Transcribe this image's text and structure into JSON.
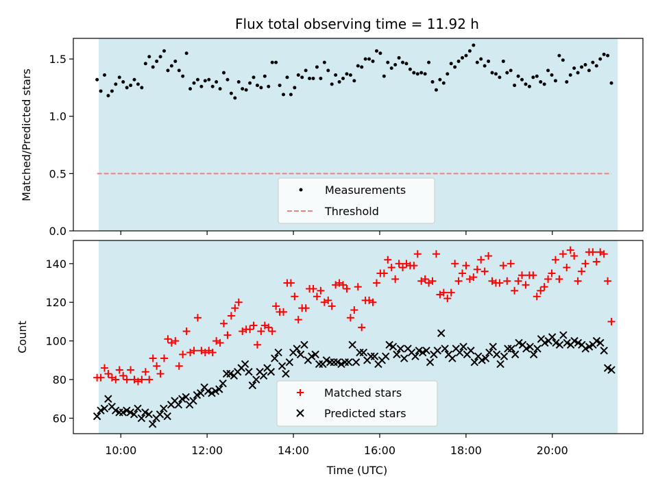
{
  "title": "Flux total observing time = 11.92 h",
  "colors": {
    "band": "#d4eaf1",
    "measurement": "#000000",
    "threshold": "#f08080",
    "matched": "#ff0000",
    "predicted": "#000000"
  },
  "chart_data": [
    {
      "type": "scatter",
      "ylabel": "Matched/Predicted stars",
      "ylim": [
        0,
        1.68
      ],
      "yticks": [
        0.0,
        0.5,
        1.0,
        1.5
      ],
      "ytick_labels": [
        "0.0",
        "0.5",
        "1.0",
        "1.5"
      ],
      "xlim": [
        8.9,
        22.1
      ],
      "observing_window": [
        9.45,
        21.37
      ],
      "legend": {
        "placement": "lower-center",
        "entries": [
          "Measurements",
          "Threshold"
        ]
      },
      "threshold": 0.5,
      "x_start": 9.45,
      "x_end": 21.37,
      "series": [
        {
          "name": "Measurements",
          "marker": "dot",
          "values": [
            1.32,
            1.22,
            1.36,
            1.18,
            1.22,
            1.28,
            1.34,
            1.3,
            1.25,
            1.27,
            1.32,
            1.28,
            1.25,
            1.46,
            1.52,
            1.43,
            1.48,
            1.52,
            1.57,
            1.4,
            1.44,
            1.48,
            1.4,
            1.35,
            1.55,
            1.24,
            1.29,
            1.32,
            1.26,
            1.31,
            1.32,
            1.26,
            1.3,
            1.24,
            1.38,
            1.32,
            1.2,
            1.16,
            1.3,
            1.24,
            1.23,
            1.29,
            1.34,
            1.27,
            1.25,
            1.35,
            1.26,
            1.47,
            1.47,
            1.27,
            1.19,
            1.34,
            1.19,
            1.25,
            1.36,
            1.34,
            1.4,
            1.33,
            1.33,
            1.43,
            1.33,
            1.47,
            1.4,
            1.28,
            1.36,
            1.3,
            1.33,
            1.37,
            1.36,
            1.31,
            1.44,
            1.43,
            1.5,
            1.5,
            1.48,
            1.57,
            1.55,
            1.35,
            1.47,
            1.42,
            1.45,
            1.51,
            1.47,
            1.46,
            1.41,
            1.38,
            1.37,
            1.38,
            1.37,
            1.47,
            1.3,
            1.23,
            1.32,
            1.29,
            1.37,
            1.46,
            1.43,
            1.48,
            1.51,
            1.53,
            1.57,
            1.62,
            1.47,
            1.5,
            1.44,
            1.48,
            1.38,
            1.37,
            1.34,
            1.48,
            1.38,
            1.4,
            1.27,
            1.35,
            1.32,
            1.28,
            1.26,
            1.34,
            1.35,
            1.3,
            1.28,
            1.4,
            1.36,
            1.31,
            1.53,
            1.49,
            1.3,
            1.36,
            1.42,
            1.38,
            1.43,
            1.45,
            1.4,
            1.47,
            1.44,
            1.5,
            1.54,
            1.53,
            1.29
          ]
        }
      ]
    },
    {
      "type": "scatter",
      "xlabel": "Time (UTC)",
      "ylabel": "Count",
      "ylim": [
        52,
        152
      ],
      "yticks": [
        60,
        80,
        100,
        120,
        140
      ],
      "ytick_labels": [
        "60",
        "80",
        "100",
        "120",
        "140"
      ],
      "xlim": [
        8.9,
        22.1
      ],
      "xticks": [
        10,
        12,
        14,
        16,
        18,
        20
      ],
      "xtick_labels": [
        "10:00",
        "12:00",
        "14:00",
        "16:00",
        "18:00",
        "20:00"
      ],
      "observing_window": [
        9.45,
        21.37
      ],
      "legend": {
        "placement": "lower-center",
        "entries": [
          "Matched stars",
          "Predicted stars"
        ]
      },
      "x_start": 9.45,
      "x_end": 21.37,
      "series": [
        {
          "name": "Matched stars",
          "marker": "plus",
          "values": [
            81,
            81,
            86,
            83,
            81,
            80,
            85,
            82,
            80,
            85,
            80,
            79,
            80,
            84,
            80,
            91,
            87,
            83,
            91,
            101,
            99,
            100,
            87,
            93,
            105,
            94,
            95,
            112,
            95,
            94,
            95,
            94,
            100,
            99,
            109,
            103,
            113,
            117,
            120,
            105,
            106,
            106,
            108,
            98,
            105,
            108,
            107,
            105,
            118,
            115,
            115,
            130,
            130,
            123,
            111,
            117,
            117,
            127,
            127,
            123,
            126,
            120,
            121,
            118,
            129,
            130,
            129,
            127,
            112,
            116,
            128,
            107,
            121,
            121,
            120,
            130,
            135,
            135,
            142,
            138,
            132,
            140,
            138,
            140,
            139,
            139,
            145,
            131,
            132,
            130,
            131,
            145,
            124,
            125,
            122,
            125,
            140,
            131,
            135,
            139,
            132,
            133,
            137,
            142,
            136,
            144,
            131,
            130,
            130,
            139,
            131,
            140,
            126,
            131,
            134,
            129,
            134,
            134,
            123,
            126,
            128,
            132,
            135,
            142,
            132,
            145,
            138,
            147,
            144,
            131,
            136,
            140,
            146,
            146,
            141,
            146,
            145,
            131,
            110
          ]
        },
        {
          "name": "Predicted stars",
          "marker": "x",
          "values": [
            61,
            64,
            65,
            70,
            66,
            64,
            63,
            63,
            64,
            63,
            62,
            65,
            60,
            63,
            62,
            57,
            60,
            62,
            65,
            61,
            67,
            69,
            67,
            70,
            71,
            67,
            69,
            72,
            73,
            76,
            74,
            73,
            74,
            75,
            78,
            83,
            83,
            82,
            84,
            86,
            88,
            84,
            77,
            80,
            84,
            82,
            86,
            84,
            91,
            94,
            87,
            83,
            89,
            94,
            96,
            93,
            98,
            90,
            92,
            93,
            88,
            88,
            90,
            89,
            89,
            89,
            88,
            89,
            89,
            98,
            89,
            94,
            94,
            90,
            92,
            92,
            88,
            90,
            92,
            98,
            97,
            93,
            96,
            91,
            96,
            94,
            92,
            95,
            94,
            95,
            89,
            93,
            95,
            104,
            96,
            93,
            91,
            96,
            94,
            97,
            93,
            95,
            89,
            92,
            90,
            91,
            94,
            97,
            93,
            88,
            92,
            96,
            96,
            93,
            99,
            98,
            96,
            97,
            93,
            96,
            101,
            99,
            100,
            102,
            99,
            98,
            103,
            99,
            98,
            100,
            99,
            98,
            96,
            97,
            98,
            100,
            99,
            95,
            86,
            85
          ]
        }
      ]
    }
  ]
}
